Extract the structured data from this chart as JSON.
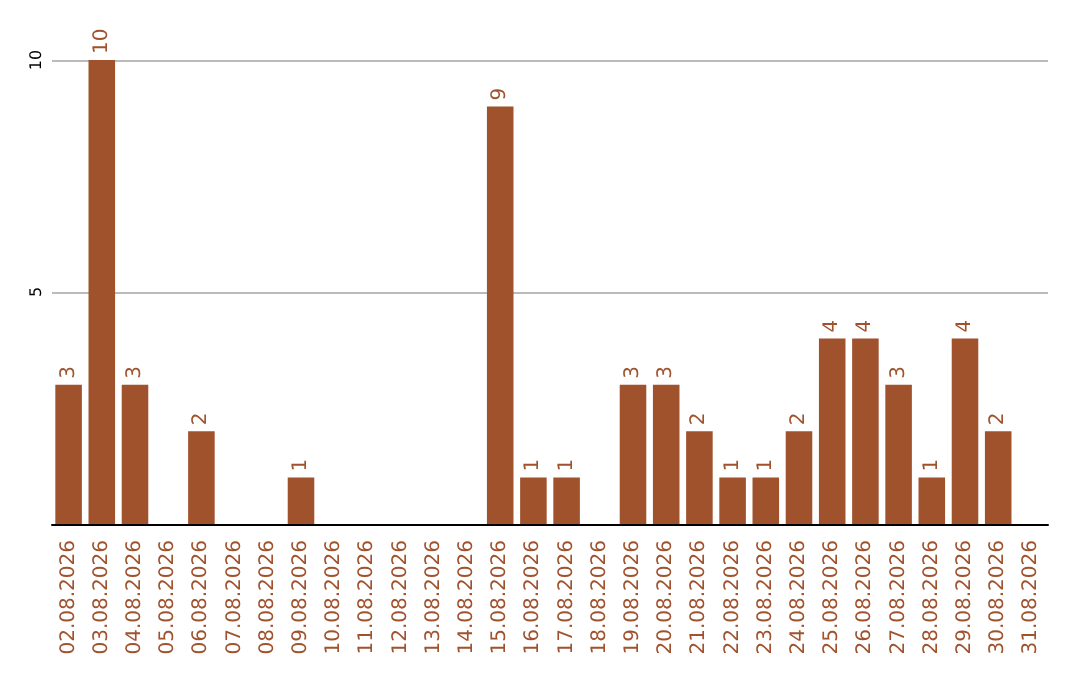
{
  "chart_data": {
    "type": "bar",
    "categories": [
      "02.08.2026",
      "03.08.2026",
      "04.08.2026",
      "05.08.2026",
      "06.08.2026",
      "07.08.2026",
      "08.08.2026",
      "09.08.2026",
      "10.08.2026",
      "11.08.2026",
      "12.08.2026",
      "13.08.2026",
      "14.08.2026",
      "15.08.2026",
      "16.08.2026",
      "17.08.2026",
      "18.08.2026",
      "19.08.2026",
      "20.08.2026",
      "21.08.2026",
      "22.08.2026",
      "23.08.2026",
      "24.08.2026",
      "25.08.2026",
      "26.08.2026",
      "27.08.2026",
      "28.08.2026",
      "29.08.2026",
      "30.08.2026",
      "31.08.2026"
    ],
    "values": [
      3,
      10,
      3,
      0,
      2,
      0,
      0,
      1,
      0,
      0,
      0,
      0,
      0,
      9,
      1,
      1,
      0,
      3,
      3,
      2,
      1,
      1,
      2,
      4,
      4,
      3,
      1,
      4,
      2,
      0
    ],
    "value_labels": [
      "3",
      "10",
      "3",
      null,
      "2",
      null,
      null,
      "1",
      null,
      null,
      null,
      null,
      null,
      "9",
      "1",
      "1",
      null,
      "3",
      "3",
      "2",
      "1",
      "1",
      "2",
      "4",
      "4",
      "3",
      "1",
      "4",
      "2",
      null
    ],
    "color": "#a0522d",
    "ylim": [
      0,
      10
    ],
    "yticks": [
      {
        "value": 0,
        "label": null
      },
      5,
      10
    ],
    "grid": "y"
  }
}
